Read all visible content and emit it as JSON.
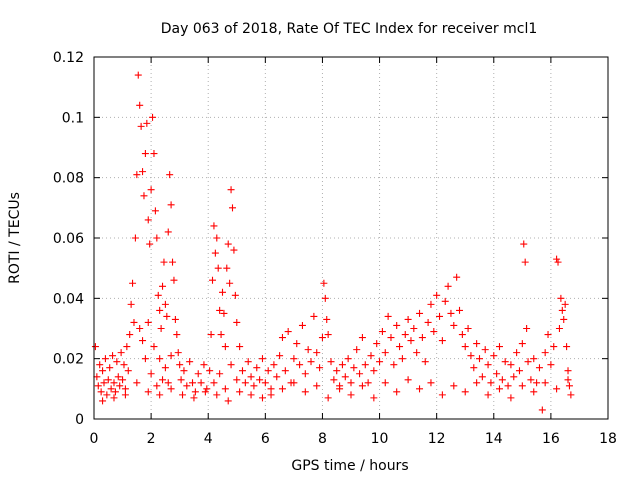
{
  "chart_data": {
    "type": "scatter",
    "title": "Day 063 of 2018, Rate Of TEC Index for receiver mcl1",
    "xlabel": "GPS time / hours",
    "ylabel": "ROTI / TECUs",
    "xlim": [
      0,
      18
    ],
    "ylim": [
      0,
      0.12
    ],
    "xticks": [
      0,
      2,
      4,
      6,
      8,
      10,
      12,
      14,
      16,
      18
    ],
    "yticks": [
      0,
      0.02,
      0.04,
      0.06,
      0.08,
      0.1,
      0.12
    ],
    "xtick_labels": [
      "0",
      "2",
      "4",
      "6",
      "8",
      "10",
      "12",
      "14",
      "16",
      "18"
    ],
    "ytick_labels": [
      "0",
      "0.02",
      "0.04",
      "0.06",
      "0.08",
      "0.1",
      "0.12"
    ],
    "grid": true,
    "marker": "+",
    "color": "#ff0000",
    "series": [
      {
        "name": "ROTI",
        "points": [
          [
            0.05,
            0.024
          ],
          [
            0.1,
            0.014
          ],
          [
            0.15,
            0.011
          ],
          [
            0.2,
            0.018
          ],
          [
            0.25,
            0.009
          ],
          [
            0.3,
            0.016
          ],
          [
            0.35,
            0.012
          ],
          [
            0.4,
            0.02
          ],
          [
            0.45,
            0.008
          ],
          [
            0.5,
            0.013
          ],
          [
            0.55,
            0.017
          ],
          [
            0.6,
            0.01
          ],
          [
            0.65,
            0.021
          ],
          [
            0.7,
            0.012
          ],
          [
            0.75,
            0.009
          ],
          [
            0.8,
            0.019
          ],
          [
            0.85,
            0.014
          ],
          [
            0.9,
            0.011
          ],
          [
            0.95,
            0.022
          ],
          [
            1.0,
            0.013
          ],
          [
            1.05,
            0.018
          ],
          [
            1.1,
            0.01
          ],
          [
            1.15,
            0.024
          ],
          [
            1.2,
            0.016
          ],
          [
            1.25,
            0.028
          ],
          [
            1.3,
            0.038
          ],
          [
            1.35,
            0.045
          ],
          [
            1.4,
            0.032
          ],
          [
            1.45,
            0.06
          ],
          [
            1.5,
            0.081
          ],
          [
            1.55,
            0.114
          ],
          [
            1.6,
            0.104
          ],
          [
            1.65,
            0.097
          ],
          [
            1.7,
            0.082
          ],
          [
            1.75,
            0.074
          ],
          [
            1.8,
            0.088
          ],
          [
            1.85,
            0.098
          ],
          [
            1.9,
            0.066
          ],
          [
            1.95,
            0.058
          ],
          [
            2.0,
            0.076
          ],
          [
            2.05,
            0.1
          ],
          [
            2.1,
            0.088
          ],
          [
            2.15,
            0.069
          ],
          [
            2.2,
            0.06
          ],
          [
            2.25,
            0.041
          ],
          [
            2.3,
            0.036
          ],
          [
            2.35,
            0.03
          ],
          [
            2.4,
            0.044
          ],
          [
            2.45,
            0.052
          ],
          [
            2.5,
            0.038
          ],
          [
            2.55,
            0.034
          ],
          [
            2.6,
            0.062
          ],
          [
            2.65,
            0.081
          ],
          [
            2.7,
            0.071
          ],
          [
            2.75,
            0.052
          ],
          [
            2.8,
            0.046
          ],
          [
            2.85,
            0.033
          ],
          [
            2.9,
            0.028
          ],
          [
            2.95,
            0.022
          ],
          [
            3.0,
            0.018
          ],
          [
            1.6,
            0.03
          ],
          [
            1.7,
            0.026
          ],
          [
            1.8,
            0.02
          ],
          [
            1.9,
            0.032
          ],
          [
            2.0,
            0.015
          ],
          [
            2.1,
            0.024
          ],
          [
            2.2,
            0.011
          ],
          [
            2.3,
            0.02
          ],
          [
            2.4,
            0.013
          ],
          [
            2.5,
            0.017
          ],
          [
            2.6,
            0.012
          ],
          [
            2.7,
            0.021
          ],
          [
            3.05,
            0.013
          ],
          [
            3.15,
            0.016
          ],
          [
            3.25,
            0.011
          ],
          [
            3.35,
            0.019
          ],
          [
            3.45,
            0.012
          ],
          [
            3.55,
            0.009
          ],
          [
            3.65,
            0.015
          ],
          [
            3.75,
            0.012
          ],
          [
            3.85,
            0.018
          ],
          [
            3.95,
            0.01
          ],
          [
            4.05,
            0.016
          ],
          [
            4.1,
            0.028
          ],
          [
            4.15,
            0.046
          ],
          [
            4.2,
            0.064
          ],
          [
            4.25,
            0.055
          ],
          [
            4.3,
            0.06
          ],
          [
            4.35,
            0.05
          ],
          [
            4.4,
            0.036
          ],
          [
            4.45,
            0.028
          ],
          [
            4.5,
            0.042
          ],
          [
            4.55,
            0.035
          ],
          [
            4.6,
            0.024
          ],
          [
            4.65,
            0.05
          ],
          [
            4.7,
            0.058
          ],
          [
            4.75,
            0.045
          ],
          [
            4.8,
            0.076
          ],
          [
            4.85,
            0.07
          ],
          [
            4.9,
            0.056
          ],
          [
            4.95,
            0.041
          ],
          [
            5.0,
            0.032
          ],
          [
            4.2,
            0.012
          ],
          [
            4.4,
            0.015
          ],
          [
            4.6,
            0.01
          ],
          [
            4.8,
            0.018
          ],
          [
            5.0,
            0.013
          ],
          [
            5.1,
            0.024
          ],
          [
            5.2,
            0.016
          ],
          [
            5.3,
            0.012
          ],
          [
            5.4,
            0.019
          ],
          [
            5.5,
            0.014
          ],
          [
            5.6,
            0.011
          ],
          [
            5.7,
            0.017
          ],
          [
            5.8,
            0.013
          ],
          [
            5.9,
            0.02
          ],
          [
            6.0,
            0.012
          ],
          [
            6.1,
            0.016
          ],
          [
            6.2,
            0.01
          ],
          [
            6.3,
            0.018
          ],
          [
            6.4,
            0.014
          ],
          [
            6.5,
            0.021
          ],
          [
            6.6,
            0.027
          ],
          [
            6.7,
            0.016
          ],
          [
            6.8,
            0.029
          ],
          [
            6.9,
            0.012
          ],
          [
            7.0,
            0.02
          ],
          [
            7.1,
            0.025
          ],
          [
            7.2,
            0.018
          ],
          [
            7.3,
            0.031
          ],
          [
            7.4,
            0.015
          ],
          [
            7.5,
            0.023
          ],
          [
            7.6,
            0.019
          ],
          [
            7.7,
            0.034
          ],
          [
            7.8,
            0.022
          ],
          [
            7.9,
            0.017
          ],
          [
            8.0,
            0.027
          ],
          [
            8.05,
            0.045
          ],
          [
            8.1,
            0.04
          ],
          [
            8.15,
            0.033
          ],
          [
            8.2,
            0.028
          ],
          [
            8.3,
            0.019
          ],
          [
            8.4,
            0.013
          ],
          [
            8.5,
            0.016
          ],
          [
            8.6,
            0.011
          ],
          [
            8.7,
            0.018
          ],
          [
            8.8,
            0.014
          ],
          [
            8.9,
            0.02
          ],
          [
            9.0,
            0.012
          ],
          [
            9.1,
            0.017
          ],
          [
            9.2,
            0.023
          ],
          [
            9.3,
            0.015
          ],
          [
            9.4,
            0.027
          ],
          [
            9.5,
            0.018
          ],
          [
            9.6,
            0.012
          ],
          [
            9.7,
            0.021
          ],
          [
            9.8,
            0.016
          ],
          [
            9.9,
            0.025
          ],
          [
            10.0,
            0.019
          ],
          [
            10.1,
            0.029
          ],
          [
            10.2,
            0.022
          ],
          [
            10.3,
            0.034
          ],
          [
            10.4,
            0.027
          ],
          [
            10.5,
            0.018
          ],
          [
            10.6,
            0.031
          ],
          [
            10.7,
            0.024
          ],
          [
            10.8,
            0.02
          ],
          [
            10.9,
            0.028
          ],
          [
            11.0,
            0.033
          ],
          [
            11.1,
            0.026
          ],
          [
            11.2,
            0.03
          ],
          [
            11.3,
            0.022
          ],
          [
            11.4,
            0.035
          ],
          [
            11.5,
            0.027
          ],
          [
            11.6,
            0.019
          ],
          [
            11.7,
            0.032
          ],
          [
            11.8,
            0.038
          ],
          [
            11.9,
            0.029
          ],
          [
            12.0,
            0.041
          ],
          [
            12.1,
            0.034
          ],
          [
            12.2,
            0.026
          ],
          [
            12.3,
            0.039
          ],
          [
            12.4,
            0.044
          ],
          [
            12.5,
            0.035
          ],
          [
            12.6,
            0.031
          ],
          [
            12.7,
            0.047
          ],
          [
            12.8,
            0.036
          ],
          [
            12.9,
            0.028
          ],
          [
            13.0,
            0.024
          ],
          [
            13.1,
            0.03
          ],
          [
            13.2,
            0.021
          ],
          [
            13.3,
            0.017
          ],
          [
            13.4,
            0.025
          ],
          [
            13.5,
            0.02
          ],
          [
            13.6,
            0.014
          ],
          [
            13.7,
            0.023
          ],
          [
            13.8,
            0.018
          ],
          [
            13.9,
            0.012
          ],
          [
            14.0,
            0.021
          ],
          [
            14.1,
            0.015
          ],
          [
            14.2,
            0.024
          ],
          [
            14.3,
            0.013
          ],
          [
            14.4,
            0.019
          ],
          [
            14.5,
            0.011
          ],
          [
            14.6,
            0.018
          ],
          [
            14.7,
            0.014
          ],
          [
            14.8,
            0.022
          ],
          [
            14.9,
            0.016
          ],
          [
            15.0,
            0.025
          ],
          [
            15.05,
            0.058
          ],
          [
            15.1,
            0.052
          ],
          [
            15.15,
            0.03
          ],
          [
            15.2,
            0.019
          ],
          [
            15.3,
            0.013
          ],
          [
            15.4,
            0.02
          ],
          [
            15.5,
            0.012
          ],
          [
            15.6,
            0.017
          ],
          [
            15.7,
            0.003
          ],
          [
            15.8,
            0.022
          ],
          [
            15.9,
            0.028
          ],
          [
            16.0,
            0.018
          ],
          [
            16.1,
            0.024
          ],
          [
            16.2,
            0.053
          ],
          [
            16.25,
            0.052
          ],
          [
            16.3,
            0.03
          ],
          [
            16.35,
            0.04
          ],
          [
            16.4,
            0.036
          ],
          [
            16.45,
            0.033
          ],
          [
            16.5,
            0.038
          ],
          [
            16.55,
            0.024
          ],
          [
            16.6,
            0.016
          ],
          [
            16.65,
            0.011
          ],
          [
            16.7,
            0.008
          ],
          [
            6.2,
            0.008
          ],
          [
            6.6,
            0.01
          ],
          [
            7.0,
            0.012
          ],
          [
            7.4,
            0.009
          ],
          [
            7.8,
            0.011
          ],
          [
            8.2,
            0.007
          ],
          [
            8.6,
            0.01
          ],
          [
            9.0,
            0.008
          ],
          [
            9.4,
            0.011
          ],
          [
            9.8,
            0.007
          ],
          [
            10.2,
            0.012
          ],
          [
            10.6,
            0.009
          ],
          [
            11.0,
            0.013
          ],
          [
            11.4,
            0.01
          ],
          [
            11.8,
            0.012
          ],
          [
            12.2,
            0.008
          ],
          [
            12.6,
            0.011
          ],
          [
            13.0,
            0.009
          ],
          [
            13.4,
            0.012
          ],
          [
            13.8,
            0.008
          ],
          [
            14.2,
            0.01
          ],
          [
            14.6,
            0.007
          ],
          [
            15.0,
            0.011
          ],
          [
            15.4,
            0.009
          ],
          [
            15.8,
            0.012
          ],
          [
            16.2,
            0.01
          ],
          [
            16.6,
            0.013
          ],
          [
            0.3,
            0.006
          ],
          [
            0.7,
            0.007
          ],
          [
            1.1,
            0.008
          ],
          [
            1.5,
            0.012
          ],
          [
            1.9,
            0.009
          ],
          [
            2.3,
            0.008
          ],
          [
            2.7,
            0.01
          ],
          [
            3.1,
            0.008
          ],
          [
            3.5,
            0.007
          ],
          [
            3.9,
            0.009
          ],
          [
            4.3,
            0.008
          ],
          [
            4.7,
            0.006
          ],
          [
            5.1,
            0.009
          ],
          [
            5.5,
            0.008
          ],
          [
            5.9,
            0.007
          ]
        ]
      }
    ]
  }
}
